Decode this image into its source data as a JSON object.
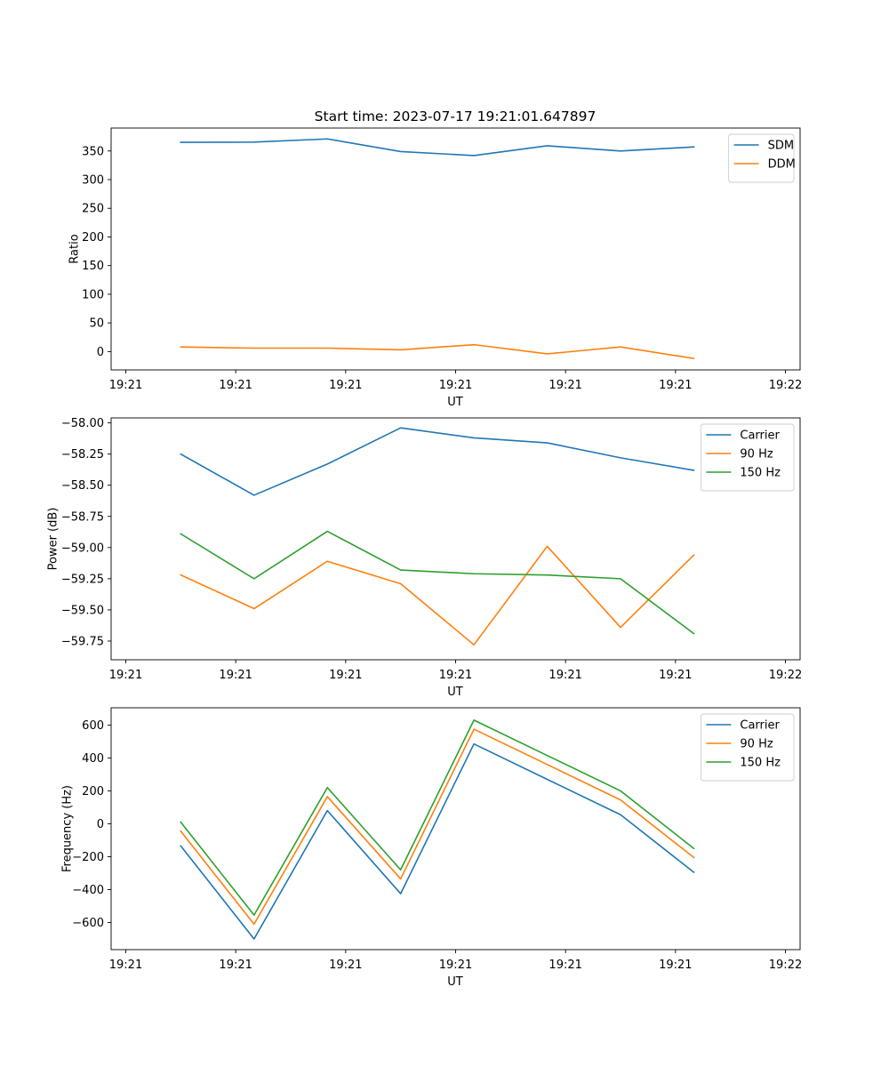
{
  "figure_title": "Start time: 2023-07-17 19:21:01.647897",
  "palette": {
    "blue": "#1f77b4",
    "orange": "#ff7f0e",
    "green": "#2ca02c"
  },
  "chart_data": [
    {
      "type": "line",
      "xlabel": "UT",
      "ylabel": "Ratio",
      "xlim": [
        -0.2,
        9.2
      ],
      "ylim": [
        -32,
        390
      ],
      "x": [
        0.75,
        1.75,
        2.75,
        3.75,
        4.75,
        5.75,
        6.75,
        7.75
      ],
      "xticks": [
        0,
        1.5,
        3,
        4.5,
        6,
        7.5,
        9
      ],
      "xtick_labels": [
        "19:21",
        "19:21",
        "19:21",
        "19:21",
        "19:21",
        "19:21",
        "19:22"
      ],
      "yticks": [
        0,
        50,
        100,
        150,
        200,
        250,
        300,
        350
      ],
      "ytick_labels": [
        "0",
        "50",
        "100",
        "150",
        "200",
        "250",
        "300",
        "350"
      ],
      "legend_position": "top-right",
      "series": [
        {
          "name": "SDM",
          "color": "#1f77b4",
          "values": [
            365,
            365.5,
            371,
            349,
            342,
            359,
            350,
            357
          ]
        },
        {
          "name": "DDM",
          "color": "#ff7f0e",
          "values": [
            8,
            6,
            6,
            3,
            12,
            -4,
            8,
            -12
          ]
        }
      ]
    },
    {
      "type": "line",
      "xlabel": "UT",
      "ylabel": "Power (dB)",
      "xlim": [
        -0.2,
        9.2
      ],
      "ylim": [
        -59.9,
        -57.96
      ],
      "x": [
        0.75,
        1.75,
        2.75,
        3.75,
        4.75,
        5.75,
        6.75,
        7.75
      ],
      "xticks": [
        0,
        1.5,
        3,
        4.5,
        6,
        7.5,
        9
      ],
      "xtick_labels": [
        "19:21",
        "19:21",
        "19:21",
        "19:21",
        "19:21",
        "19:21",
        "19:22"
      ],
      "yticks": [
        -59.75,
        -59.5,
        -59.25,
        -59.0,
        -58.75,
        -58.5,
        -58.25,
        -58.0
      ],
      "ytick_labels": [
        "−59.75",
        "−59.50",
        "−59.25",
        "−59.00",
        "−58.75",
        "−58.50",
        "−58.25",
        "−58.00"
      ],
      "legend_position": "top-right",
      "series": [
        {
          "name": "Carrier",
          "color": "#1f77b4",
          "values": [
            -58.25,
            -58.58,
            -58.33,
            -58.04,
            -58.12,
            -58.16,
            -58.28,
            -58.38
          ]
        },
        {
          "name": "90 Hz",
          "color": "#ff7f0e",
          "values": [
            -59.22,
            -59.49,
            -59.11,
            -59.29,
            -59.78,
            -58.99,
            -59.64,
            -59.06
          ]
        },
        {
          "name": "150 Hz",
          "color": "#2ca02c",
          "values": [
            -58.89,
            -59.25,
            -58.87,
            -59.18,
            -59.21,
            -59.22,
            -59.25,
            -59.69
          ]
        }
      ]
    },
    {
      "type": "line",
      "xlabel": "UT",
      "ylabel": "Frequency (Hz)",
      "xlim": [
        -0.2,
        9.2
      ],
      "ylim": [
        -765,
        705
      ],
      "x": [
        0.75,
        1.75,
        2.75,
        3.75,
        4.75,
        5.75,
        6.75,
        7.75
      ],
      "xticks": [
        0,
        1.5,
        3,
        4.5,
        6,
        7.5,
        9
      ],
      "xtick_labels": [
        "19:21",
        "19:21",
        "19:21",
        "19:21",
        "19:21",
        "19:21",
        "19:22"
      ],
      "yticks": [
        -600,
        -400,
        -200,
        0,
        200,
        400,
        600
      ],
      "ytick_labels": [
        "−600",
        "−400",
        "−200",
        "0",
        "200",
        "400",
        "600"
      ],
      "legend_position": "top-right",
      "series": [
        {
          "name": "Carrier",
          "color": "#1f77b4",
          "values": [
            -135,
            -700,
            80,
            -425,
            485,
            270,
            55,
            -295
          ]
        },
        {
          "name": "90 Hz",
          "color": "#ff7f0e",
          "values": [
            -45,
            -610,
            165,
            -335,
            575,
            360,
            145,
            -205
          ]
        },
        {
          "name": "150 Hz",
          "color": "#2ca02c",
          "values": [
            10,
            -555,
            220,
            -280,
            630,
            415,
            200,
            -150
          ]
        }
      ]
    }
  ]
}
